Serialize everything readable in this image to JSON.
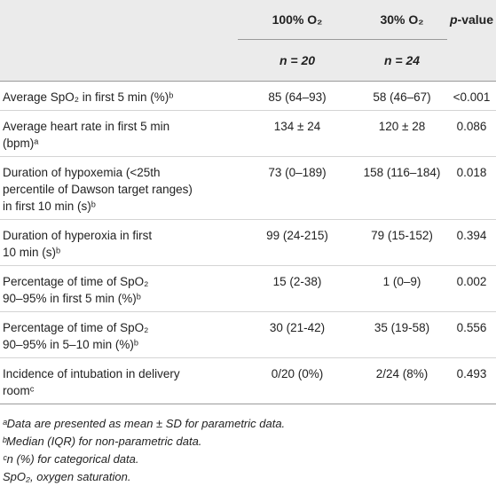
{
  "table": {
    "header": [
      "",
      "100% O₂",
      "30% O₂",
      [
        "p",
        "-value"
      ]
    ],
    "subheader": [
      "",
      "n = 20",
      "n = 24",
      ""
    ],
    "rows": [
      [
        [
          "Average SpO₂ in first 5 min (%)ᵇ"
        ],
        "85 (64–93)",
        "58 (46–67)",
        "<0.001"
      ],
      [
        [
          "Average heart rate in first 5 min",
          "(bpm)ᵃ"
        ],
        "134 ± 24",
        "120 ± 28",
        "0.086"
      ],
      [
        [
          "Duration of hypoxemia (<25th",
          "percentile of Dawson target ranges)",
          "in first 10 min (s)ᵇ"
        ],
        "73 (0–189)",
        "158 (116–184)",
        "0.018"
      ],
      [
        [
          "Duration of hyperoxia in first",
          "10 min (s)ᵇ"
        ],
        "99 (24-215)",
        "79 (15-152)",
        "0.394"
      ],
      [
        [
          "Percentage of time of SpO₂",
          "90–95% in first 5 min (%)ᵇ"
        ],
        "15 (2-38)",
        "1 (0–9)",
        "0.002"
      ],
      [
        [
          "Percentage of time of SpO₂",
          "90–95% in 5–10 min (%)ᵇ"
        ],
        "30 (21-42)",
        "35 (19-58)",
        "0.556"
      ],
      [
        [
          "Incidence of intubation in delivery",
          "roomᶜ"
        ],
        "0/20 (0%)",
        "2/24 (8%)",
        "0.493"
      ]
    ]
  },
  "footnotes": [
    "ᵃData are presented as mean ± SD for parametric data.",
    "ᵇMedian (IQR) for non-parametric data.",
    "ᶜn (%) for categorical data.",
    "SpO₂, oxygen saturation."
  ]
}
